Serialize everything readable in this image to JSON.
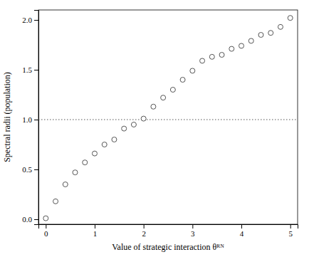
{
  "chart_data": {
    "type": "scatter",
    "xlabel": "Value of strategic interaction θᴿᴺ",
    "ylabel": "Spectral radii (population)",
    "xlim": [
      -0.15,
      5.15
    ],
    "ylim": [
      -0.05,
      2.1
    ],
    "xticks": [
      0,
      1,
      2,
      3,
      4,
      5
    ],
    "yticks": [
      {
        "value": 0.0,
        "label": "0.0"
      },
      0.5,
      {
        "value": 1.0,
        "label": "1.0"
      },
      1.5,
      {
        "value": 2.0,
        "label": "2.0"
      }
    ],
    "x": [
      0.0,
      0.2,
      0.4,
      0.6,
      0.8,
      1.0,
      1.2,
      1.4,
      1.6,
      1.8,
      2.0,
      2.2,
      2.4,
      2.6,
      2.8,
      3.0,
      3.2,
      3.4,
      3.6,
      3.8,
      4.0,
      4.2,
      4.4,
      4.6,
      4.8,
      5.0
    ],
    "values": [
      0.01,
      0.18,
      0.35,
      0.47,
      0.57,
      0.66,
      0.75,
      0.8,
      0.91,
      0.95,
      1.01,
      1.13,
      1.22,
      1.3,
      1.4,
      1.49,
      1.59,
      1.63,
      1.65,
      1.71,
      1.74,
      1.79,
      1.85,
      1.87,
      1.93,
      2.02
    ],
    "color": "#555555",
    "marker": "open-circle",
    "grid": false,
    "reference_line": {
      "y": 1.0,
      "color": "#555555",
      "line_style": "dotted"
    }
  }
}
